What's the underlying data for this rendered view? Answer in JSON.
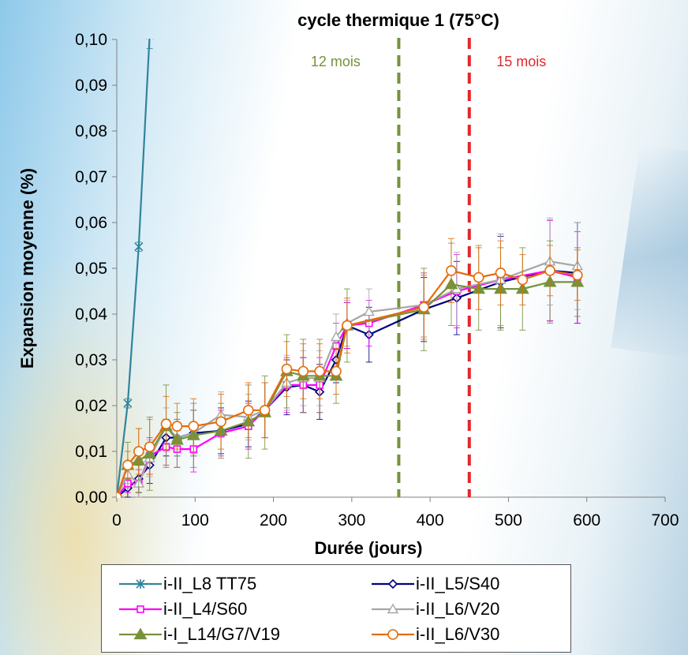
{
  "chart_data": {
    "type": "line",
    "title": "cycle thermique 1 (75°C)",
    "xlabel": "Durée (jours)",
    "ylabel": "Expansion moyenne (%)",
    "xlim": [
      0,
      700
    ],
    "ylim": [
      0,
      0.1
    ],
    "xticks": [
      0,
      100,
      200,
      300,
      400,
      500,
      600,
      700
    ],
    "yticks": [
      0.0,
      0.01,
      0.02,
      0.03,
      0.04,
      0.05,
      0.06,
      0.07,
      0.08,
      0.09,
      0.1
    ],
    "xtick_labels": [
      "0",
      "100",
      "200",
      "300",
      "400",
      "500",
      "600",
      "700"
    ],
    "ytick_labels": [
      "0,00",
      "0,01",
      "0,02",
      "0,03",
      "0,04",
      "0,05",
      "0,06",
      "0,07",
      "0,08",
      "0,09",
      "0,10"
    ],
    "grid": false,
    "legend_position": "bottom",
    "annotations": [
      {
        "x": 360,
        "label": "12 mois",
        "color": "#76923c",
        "style": "dashed"
      },
      {
        "x": 450,
        "label": "15 mois",
        "color": "#e3262a",
        "style": "dashed"
      }
    ],
    "series": [
      {
        "name": "i-II_L8 TT75",
        "color": "#31849b",
        "marker": "star",
        "filled": false,
        "x": [
          0,
          14,
          28,
          42
        ],
        "y": [
          0.0,
          0.0205,
          0.0547,
          0.101
        ],
        "err": [
          0,
          0.001,
          0.001,
          0.003
        ]
      },
      {
        "name": "i-II_L5/S40",
        "color": "#000080",
        "marker": "diamond",
        "filled": false,
        "x": [
          0,
          14,
          28,
          42,
          63,
          77,
          98,
          133,
          168,
          189,
          217,
          238,
          259,
          280,
          294,
          322,
          392,
          434,
          490,
          553,
          588
        ],
        "y": [
          0.0,
          0.002,
          0.004,
          0.007,
          0.013,
          0.013,
          0.014,
          0.0145,
          0.016,
          0.019,
          0.024,
          0.0245,
          0.023,
          0.03,
          0.0375,
          0.0355,
          0.041,
          0.0435,
          0.047,
          0.0495,
          0.049
        ],
        "err": [
          0,
          0.002,
          0.003,
          0.004,
          0.004,
          0.004,
          0.005,
          0.005,
          0.005,
          0.006,
          0.006,
          0.006,
          0.006,
          0.005,
          0.005,
          0.006,
          0.007,
          0.008,
          0.01,
          0.011,
          0.011
        ]
      },
      {
        "name": "i-II_L4/S60",
        "color": "#ff00ff",
        "marker": "square",
        "filled": false,
        "x": [
          0,
          14,
          28,
          42,
          63,
          77,
          98,
          133,
          168,
          189,
          217,
          238,
          259,
          280,
          294,
          322,
          392,
          434,
          490,
          553,
          588
        ],
        "y": [
          0.0,
          0.003,
          0.003,
          0.009,
          0.011,
          0.0105,
          0.0105,
          0.014,
          0.0155,
          0.019,
          0.0245,
          0.0245,
          0.0245,
          0.033,
          0.0375,
          0.038,
          0.042,
          0.045,
          0.0475,
          0.0495,
          0.048
        ],
        "err": [
          0,
          0.002,
          0.003,
          0.004,
          0.004,
          0.004,
          0.005,
          0.005,
          0.005,
          0.006,
          0.006,
          0.006,
          0.006,
          0.005,
          0.005,
          0.005,
          0.007,
          0.008,
          0.01,
          0.011,
          0.01
        ]
      },
      {
        "name": "i-II_L6/V20",
        "color": "#a6a6a6",
        "marker": "triangle",
        "filled": false,
        "x": [
          0,
          14,
          28,
          42,
          63,
          77,
          98,
          133,
          168,
          189,
          217,
          238,
          259,
          280,
          294,
          322,
          392,
          434,
          490,
          553,
          588
        ],
        "y": [
          0.0,
          0.005,
          0.003,
          0.0085,
          0.0155,
          0.013,
          0.014,
          0.018,
          0.0175,
          0.019,
          0.025,
          0.026,
          0.026,
          0.035,
          0.038,
          0.0405,
          0.042,
          0.0455,
          0.0475,
          0.0515,
          0.0505
        ],
        "err": [
          0,
          0.002,
          0.003,
          0.004,
          0.004,
          0.004,
          0.005,
          0.005,
          0.005,
          0.006,
          0.006,
          0.006,
          0.006,
          0.005,
          0.005,
          0.005,
          0.007,
          0.008,
          0.01,
          0.0095,
          0.0095
        ]
      },
      {
        "name": "i-I_L14/G7/V19",
        "color": "#76923c",
        "marker": "triangle",
        "filled": true,
        "x": [
          0,
          14,
          28,
          42,
          63,
          77,
          98,
          133,
          168,
          189,
          217,
          238,
          259,
          280,
          294,
          392,
          427,
          462,
          490,
          518,
          553,
          588
        ],
        "y": [
          0.0,
          0.007,
          0.008,
          0.0095,
          0.0155,
          0.0125,
          0.0135,
          0.0145,
          0.0165,
          0.0185,
          0.0275,
          0.0265,
          0.0265,
          0.0265,
          0.0375,
          0.041,
          0.0465,
          0.0455,
          0.0455,
          0.0455,
          0.047,
          0.047
        ],
        "err": [
          0,
          0.005,
          0.007,
          0.008,
          0.009,
          0.006,
          0.007,
          0.006,
          0.008,
          0.008,
          0.008,
          0.008,
          0.008,
          0.006,
          0.008,
          0.009,
          0.009,
          0.009,
          0.009,
          0.009,
          0.009,
          0.0075
        ]
      },
      {
        "name": "i-II_L6/V30",
        "color": "#e46c0a",
        "marker": "circle",
        "filled": false,
        "x": [
          0,
          14,
          28,
          42,
          63,
          77,
          98,
          133,
          168,
          189,
          217,
          238,
          259,
          280,
          294,
          392,
          427,
          462,
          490,
          518,
          553,
          588
        ],
        "y": [
          0.0,
          0.007,
          0.01,
          0.011,
          0.016,
          0.0155,
          0.0155,
          0.0165,
          0.019,
          0.019,
          0.028,
          0.0275,
          0.0275,
          0.0275,
          0.0375,
          0.0415,
          0.0495,
          0.048,
          0.049,
          0.0475,
          0.0495,
          0.0485
        ],
        "err": [
          0,
          0.003,
          0.005,
          0.006,
          0.006,
          0.005,
          0.006,
          0.006,
          0.006,
          0.006,
          0.006,
          0.006,
          0.006,
          0.005,
          0.006,
          0.007,
          0.007,
          0.007,
          0.007,
          0.0055,
          0.0055,
          0.0055
        ]
      }
    ]
  }
}
